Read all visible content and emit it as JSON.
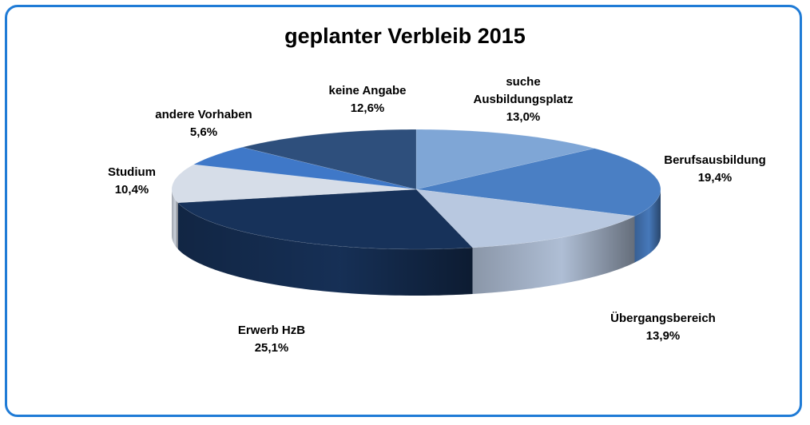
{
  "chart_data": {
    "type": "pie",
    "title": "geplanter Verbleib 2015",
    "categories": [
      "suche Ausbildungsplatz",
      "Berufsausbildung",
      "Übergangsbereich",
      "Erwerb HzB",
      "Studium",
      "andere Vorhaben",
      "keine Angabe"
    ],
    "values": [
      13.0,
      19.4,
      13.9,
      25.1,
      10.4,
      5.6,
      12.6
    ],
    "value_labels": [
      "13,0%",
      "19,4%",
      "13,9%",
      "25,1%",
      "10,4%",
      "5,6%",
      "12,6%"
    ],
    "colors": [
      "#7fa6d6",
      "#4a7fc4",
      "#b8c8e0",
      "#17325a",
      "#d6dde8",
      "#3f78c8",
      "#2e4f7c"
    ]
  }
}
